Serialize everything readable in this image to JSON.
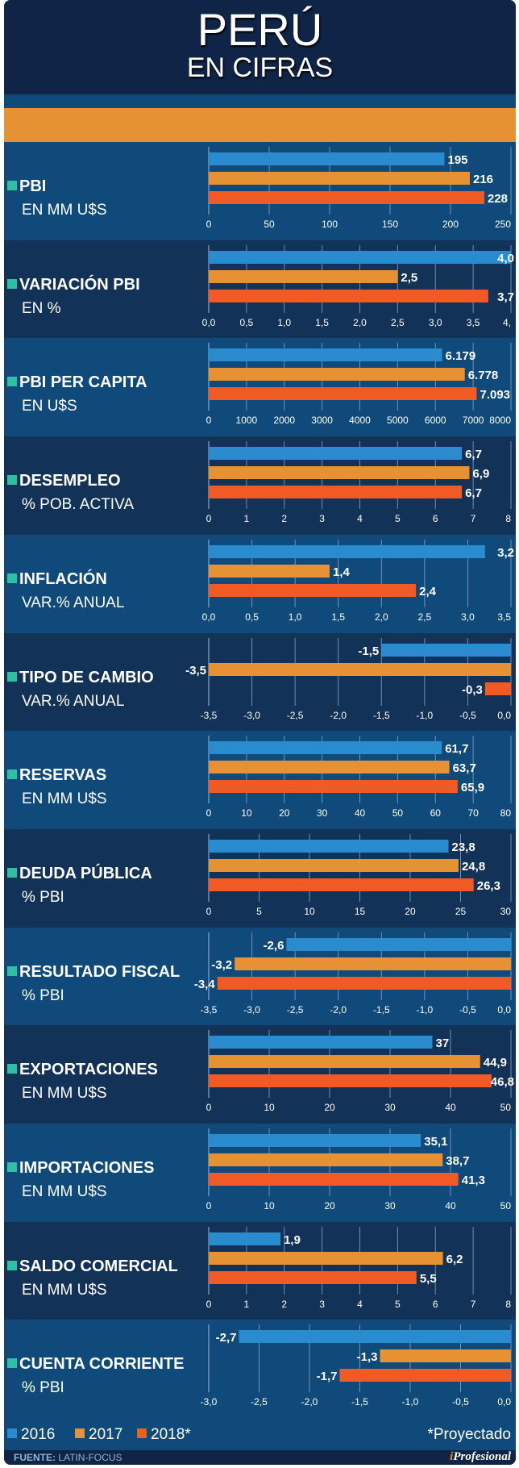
{
  "header": {
    "title": "PERÚ",
    "subtitle": "EN CIFRAS"
  },
  "colors": {
    "2016": "#2a8bcf",
    "2017": "#e69133",
    "2018": "#f05a24",
    "grid": "#8aa4c4",
    "marker": "#2fbfa3"
  },
  "legend": {
    "items": [
      {
        "label": "2016",
        "color": "#2a8bcf"
      },
      {
        "label": "2017",
        "color": "#e69133"
      },
      {
        "label": "2018*",
        "color": "#f05a24"
      }
    ],
    "note": "*Proyectado"
  },
  "footer": {
    "source_label": "FUENTE:",
    "source": "LATIN-FOCUS",
    "brand_i": "i",
    "brand_rest": "Profesional"
  },
  "chart_data": [
    {
      "type": "bar",
      "title": "PBI",
      "subtitle": "EN MM U$S",
      "series_names": [
        "2016",
        "2017",
        "2018*"
      ],
      "values": [
        195,
        216,
        228
      ],
      "labels": [
        "195",
        "216",
        "228"
      ],
      "xlim": [
        0,
        250
      ],
      "ticks": [
        "0",
        "50",
        "100",
        "150",
        "200",
        "250"
      ]
    },
    {
      "type": "bar",
      "title": "VARIACIÓN PBI",
      "subtitle": "EN %",
      "series_names": [
        "2016",
        "2017",
        "2018*"
      ],
      "values": [
        4.0,
        2.5,
        3.7
      ],
      "labels": [
        "4,0",
        "2,5",
        "3,7"
      ],
      "xlim": [
        0,
        4
      ],
      "ticks": [
        "0,0",
        "0,5",
        "1,0",
        "1,5",
        "2,0",
        "2,5",
        "3,0",
        "3,5",
        "4,"
      ]
    },
    {
      "type": "bar",
      "title": "PBI PER CAPITA",
      "subtitle": "EN U$S",
      "series_names": [
        "2016",
        "2017",
        "2018*"
      ],
      "values": [
        6179,
        6778,
        7093
      ],
      "labels": [
        "6.179",
        "6.778",
        "7.093"
      ],
      "xlim": [
        0,
        8000
      ],
      "ticks": [
        "0",
        "1000",
        "2000",
        "3000",
        "4000",
        "5000",
        "6000",
        "7000",
        "8000"
      ]
    },
    {
      "type": "bar",
      "title": "DESEMPLEO",
      "subtitle": "% POB. ACTIVA",
      "series_names": [
        "2016",
        "2017",
        "2018*"
      ],
      "values": [
        6.7,
        6.9,
        6.7
      ],
      "labels": [
        "6,7",
        "6,9",
        "6,7"
      ],
      "xlim": [
        0,
        8
      ],
      "ticks": [
        "0",
        "1",
        "2",
        "3",
        "4",
        "5",
        "6",
        "7",
        "8"
      ]
    },
    {
      "type": "bar",
      "title": "INFLACIÓN",
      "subtitle": "VAR.% ANUAL",
      "series_names": [
        "2016",
        "2017",
        "2018*"
      ],
      "values": [
        3.2,
        1.4,
        2.4
      ],
      "labels": [
        "3,2",
        "1,4",
        "2,4"
      ],
      "xlim": [
        0,
        3.5
      ],
      "ticks": [
        "0,0",
        "0,5",
        "1,0",
        "1,5",
        "2,0",
        "2,5",
        "3,0",
        "3,5"
      ]
    },
    {
      "type": "bar",
      "title": "TIPO DE CAMBIO",
      "subtitle": "VAR.% ANUAL",
      "series_names": [
        "2016",
        "2017",
        "2018*"
      ],
      "values": [
        -1.5,
        -3.5,
        -0.3
      ],
      "labels": [
        "-1,5",
        "-3,5",
        "-0,3"
      ],
      "xlim": [
        -3.5,
        0
      ],
      "ticks": [
        "-3,5",
        "-3,0",
        "-2,5",
        "-2,0",
        "-1,5",
        "-1,0",
        "-0,5",
        "0,0"
      ]
    },
    {
      "type": "bar",
      "title": "RESERVAS",
      "subtitle": "EN MM U$S",
      "series_names": [
        "2016",
        "2017",
        "2018*"
      ],
      "values": [
        61.7,
        63.7,
        65.9
      ],
      "labels": [
        "61,7",
        "63,7",
        "65,9"
      ],
      "xlim": [
        0,
        80
      ],
      "ticks": [
        "0",
        "10",
        "20",
        "30",
        "40",
        "50",
        "60",
        "70",
        "80"
      ]
    },
    {
      "type": "bar",
      "title": "DEUDA PÚBLICA",
      "subtitle": "% PBI",
      "series_names": [
        "2016",
        "2017",
        "2018*"
      ],
      "values": [
        23.8,
        24.8,
        26.3
      ],
      "labels": [
        "23,8",
        "24,8",
        "26,3"
      ],
      "xlim": [
        0,
        30
      ],
      "ticks": [
        "0",
        "5",
        "10",
        "15",
        "20",
        "25",
        "30"
      ]
    },
    {
      "type": "bar",
      "title": "RESULTADO FISCAL",
      "subtitle": "% PBI",
      "series_names": [
        "2016",
        "2017",
        "2018*"
      ],
      "values": [
        -2.6,
        -3.2,
        -3.4
      ],
      "labels": [
        "-2,6",
        "-3,2",
        "-3,4"
      ],
      "xlim": [
        -3.5,
        0
      ],
      "ticks": [
        "-3,5",
        "-3,0",
        "-2,5",
        "-2,0",
        "-1,5",
        "-1,0",
        "-0,5",
        "0,0"
      ]
    },
    {
      "type": "bar",
      "title": "EXPORTACIONES",
      "subtitle": "EN MM U$S",
      "series_names": [
        "2016",
        "2017",
        "2018*"
      ],
      "values": [
        37,
        44.9,
        46.8
      ],
      "labels": [
        "37",
        "44,9",
        "46,8"
      ],
      "xlim": [
        0,
        50
      ],
      "ticks": [
        "0",
        "10",
        "20",
        "30",
        "40",
        "50"
      ]
    },
    {
      "type": "bar",
      "title": "IMPORTACIONES",
      "subtitle": "EN MM U$S",
      "series_names": [
        "2016",
        "2017",
        "2018*"
      ],
      "values": [
        35.1,
        38.7,
        41.3
      ],
      "labels": [
        "35,1",
        "38,7",
        "41,3"
      ],
      "xlim": [
        0,
        50
      ],
      "ticks": [
        "0",
        "10",
        "20",
        "30",
        "40",
        "50"
      ]
    },
    {
      "type": "bar",
      "title": "SALDO COMERCIAL",
      "subtitle": "EN MM U$S",
      "series_names": [
        "2016",
        "2017",
        "2018*"
      ],
      "values": [
        1.9,
        6.2,
        5.5
      ],
      "labels": [
        "1,9",
        "6,2",
        "5,5"
      ],
      "xlim": [
        0,
        8
      ],
      "ticks": [
        "0",
        "1",
        "2",
        "3",
        "4",
        "5",
        "6",
        "7",
        "8"
      ]
    },
    {
      "type": "bar",
      "title": "CUENTA CORRIENTE",
      "subtitle": "% PBI",
      "series_names": [
        "2016",
        "2017",
        "2018*"
      ],
      "values": [
        -2.7,
        -1.3,
        -1.7
      ],
      "labels": [
        "-2,7",
        "-1,3",
        "-1,7"
      ],
      "xlim": [
        -3.0,
        0
      ],
      "ticks": [
        "-3,0",
        "-2,5",
        "-2,0",
        "-1,5",
        "-1,0",
        "-0,5",
        "0,0"
      ]
    }
  ]
}
